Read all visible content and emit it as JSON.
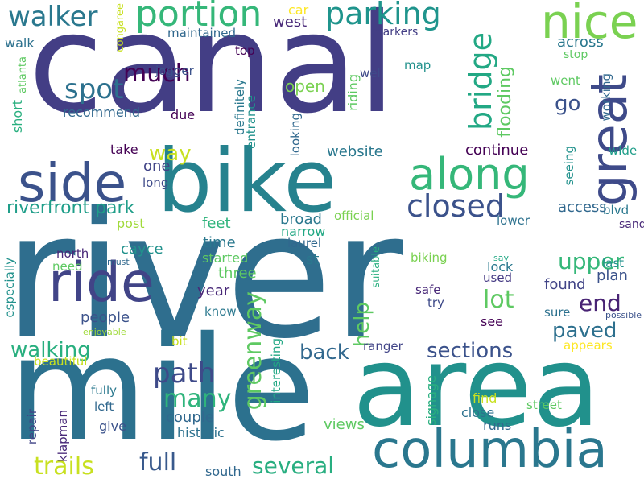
{
  "words": [
    {
      "id": "river",
      "text": "river",
      "color": "#2f6e8e"
    },
    {
      "id": "canal",
      "text": "canal",
      "color": "#433e85"
    },
    {
      "id": "mile",
      "text": "mile",
      "color": "#2c718e"
    },
    {
      "id": "bike",
      "text": "bike",
      "color": "#26828e"
    },
    {
      "id": "area",
      "text": "area",
      "color": "#21918c"
    },
    {
      "id": "columbia",
      "text": "columbia",
      "color": "#2a778e"
    },
    {
      "id": "side",
      "text": "side",
      "color": "#3b528b"
    },
    {
      "id": "along",
      "text": "along",
      "color": "#35b779"
    },
    {
      "id": "ride",
      "text": "ride",
      "color": "#414487"
    },
    {
      "id": "nice",
      "text": "nice",
      "color": "#7ad151"
    },
    {
      "id": "great",
      "text": "great",
      "color": "#3e4a89"
    },
    {
      "id": "portion",
      "text": "portion",
      "color": "#35b779"
    },
    {
      "id": "parking",
      "text": "parking",
      "color": "#1f948c"
    },
    {
      "id": "walker",
      "text": "walker",
      "color": "#2a788e"
    },
    {
      "id": "closed",
      "text": "closed",
      "color": "#3b528b"
    },
    {
      "id": "spot",
      "text": "spot",
      "color": "#2c718e"
    },
    {
      "id": "much",
      "text": "much",
      "color": "#440154"
    },
    {
      "id": "bridge",
      "text": "bridge",
      "color": "#22a884"
    },
    {
      "id": "path",
      "text": "path",
      "color": "#3e4a89"
    },
    {
      "id": "many",
      "text": "many",
      "color": "#2fb47c"
    },
    {
      "id": "greenway",
      "text": "greenway",
      "color": "#5ec962"
    },
    {
      "id": "trails",
      "text": "trails",
      "color": "#c8e020"
    },
    {
      "id": "full",
      "text": "full",
      "color": "#38598c"
    },
    {
      "id": "several",
      "text": "several",
      "color": "#28ae80"
    },
    {
      "id": "riverfront_park",
      "text": "riverfront park",
      "color": "#1f9e89"
    },
    {
      "id": "walking",
      "text": "walking",
      "color": "#29af7f"
    },
    {
      "id": "back",
      "text": "back",
      "color": "#31688e"
    },
    {
      "id": "sections",
      "text": "sections",
      "color": "#3b528b"
    },
    {
      "id": "paved",
      "text": "paved",
      "color": "#2d708e"
    },
    {
      "id": "upper",
      "text": "upper",
      "color": "#35b779"
    },
    {
      "id": "lot",
      "text": "lot",
      "color": "#5ec962"
    },
    {
      "id": "end",
      "text": "end",
      "color": "#482374"
    },
    {
      "id": "help",
      "text": "help",
      "color": "#5ec962"
    },
    {
      "id": "way",
      "text": "way",
      "color": "#c8e020"
    },
    {
      "id": "go",
      "text": "go",
      "color": "#3b528b"
    },
    {
      "id": "flooding",
      "text": "flooding",
      "color": "#5ec962"
    },
    {
      "id": "across",
      "text": "across",
      "color": "#2a788e"
    },
    {
      "id": "stop",
      "text": "stop",
      "color": "#5ec962"
    },
    {
      "id": "working",
      "text": "working",
      "color": "#31688e"
    },
    {
      "id": "went",
      "text": "went",
      "color": "#5ec962"
    },
    {
      "id": "wide",
      "text": "wide",
      "color": "#1f9e89"
    },
    {
      "id": "seeing",
      "text": "seeing",
      "color": "#21918c"
    },
    {
      "id": "blvd",
      "text": "blvd",
      "color": "#2a788e"
    },
    {
      "id": "access",
      "text": "access",
      "color": "#31688e"
    },
    {
      "id": "lower",
      "text": "lower",
      "color": "#2c718e"
    },
    {
      "id": "sand",
      "text": "sand",
      "color": "#482878"
    },
    {
      "id": "last",
      "text": "last",
      "color": "#21918c"
    },
    {
      "id": "plan",
      "text": "plan",
      "color": "#3b528b"
    },
    {
      "id": "found",
      "text": "found",
      "color": "#414487"
    },
    {
      "id": "sure",
      "text": "sure",
      "color": "#2c718e"
    },
    {
      "id": "possible",
      "text": "possible",
      "color": "#3b528b"
    },
    {
      "id": "appears",
      "text": "appears",
      "color": "#fde725"
    },
    {
      "id": "ranger",
      "text": "ranger",
      "color": "#414487"
    },
    {
      "id": "see",
      "text": "see",
      "color": "#440154"
    },
    {
      "id": "lock",
      "text": "lock",
      "color": "#2a788e"
    },
    {
      "id": "say",
      "text": "say",
      "color": "#22a884"
    },
    {
      "id": "used",
      "text": "used",
      "color": "#443983"
    },
    {
      "id": "safe",
      "text": "safe",
      "color": "#482878"
    },
    {
      "id": "try",
      "text": "try",
      "color": "#3e4a89"
    },
    {
      "id": "biking",
      "text": "biking",
      "color": "#7ad151"
    },
    {
      "id": "suitable",
      "text": "suitable",
      "color": "#29af7f"
    },
    {
      "id": "official",
      "text": "official",
      "color": "#7ad151"
    },
    {
      "id": "broad",
      "text": "broad",
      "color": "#2a788e"
    },
    {
      "id": "narrow",
      "text": "narrow",
      "color": "#22a884"
    },
    {
      "id": "laurel",
      "text": "laurel",
      "color": "#31688e"
    },
    {
      "id": "st",
      "text": "st",
      "color": "#2a788e"
    },
    {
      "id": "continue",
      "text": "continue",
      "color": "#440154"
    },
    {
      "id": "website",
      "text": "website",
      "color": "#2a788e"
    },
    {
      "id": "looking",
      "text": "looking",
      "color": "#31688e"
    },
    {
      "id": "open",
      "text": "open",
      "color": "#7ad151"
    },
    {
      "id": "riding",
      "text": "riding",
      "color": "#5ec962"
    },
    {
      "id": "well",
      "text": "well",
      "color": "#3e4a89"
    },
    {
      "id": "map",
      "text": "map",
      "color": "#21918c"
    },
    {
      "id": "markers",
      "text": "markers",
      "color": "#433e85"
    },
    {
      "id": "west",
      "text": "west",
      "color": "#482878"
    },
    {
      "id": "car",
      "text": "car",
      "color": "#fde725"
    },
    {
      "id": "congaree",
      "text": "congaree",
      "color": "#c8e020"
    },
    {
      "id": "maintained",
      "text": "maintained",
      "color": "#31688e"
    },
    {
      "id": "top",
      "text": "top",
      "color": "#440154"
    },
    {
      "id": "jogger",
      "text": "jogger",
      "color": "#3b528b"
    },
    {
      "id": "definitely",
      "text": "definitely",
      "color": "#2a788e"
    },
    {
      "id": "entrance",
      "text": "entrance",
      "color": "#21918c"
    },
    {
      "id": "walk",
      "text": "walk",
      "color": "#2c718e"
    },
    {
      "id": "atlanta",
      "text": "atlanta",
      "color": "#5ec962"
    },
    {
      "id": "short",
      "text": "short",
      "color": "#29af7f"
    },
    {
      "id": "recommend",
      "text": "recommend",
      "color": "#31688e"
    },
    {
      "id": "due",
      "text": "due",
      "color": "#440154"
    },
    {
      "id": "take",
      "text": "take",
      "color": "#440154"
    },
    {
      "id": "one",
      "text": "one",
      "color": "#414487"
    },
    {
      "id": "long",
      "text": "long",
      "color": "#3e4a89"
    },
    {
      "id": "post",
      "text": "post",
      "color": "#a0da39"
    },
    {
      "id": "feet",
      "text": "feet",
      "color": "#2fb47c"
    },
    {
      "id": "cayce",
      "text": "cayce",
      "color": "#21918c"
    },
    {
      "id": "time",
      "text": "time",
      "color": "#2a788e"
    },
    {
      "id": "started",
      "text": "started",
      "color": "#5ec962"
    },
    {
      "id": "three",
      "text": "three",
      "color": "#5ec962"
    },
    {
      "id": "year",
      "text": "year",
      "color": "#482878"
    },
    {
      "id": "north",
      "text": "north",
      "color": "#482878"
    },
    {
      "id": "need",
      "text": "need",
      "color": "#5ec962"
    },
    {
      "id": "must",
      "text": "must",
      "color": "#31688e"
    },
    {
      "id": "especially",
      "text": "especially",
      "color": "#21918c"
    },
    {
      "id": "people",
      "text": "people",
      "color": "#3b528b"
    },
    {
      "id": "know",
      "text": "know",
      "color": "#2a788e"
    },
    {
      "id": "enjoyable",
      "text": "enjoyable",
      "color": "#a0da39"
    },
    {
      "id": "bit",
      "text": "bit",
      "color": "#c8e020"
    },
    {
      "id": "beautiful",
      "text": "beautiful",
      "color": "#c8e020"
    },
    {
      "id": "interesting",
      "text": "interesting",
      "color": "#22a884"
    },
    {
      "id": "fully",
      "text": "fully",
      "color": "#2a788e"
    },
    {
      "id": "left",
      "text": "left",
      "color": "#31688e"
    },
    {
      "id": "give",
      "text": "give",
      "color": "#3b528b"
    },
    {
      "id": "couple",
      "text": "couple",
      "color": "#31688e"
    },
    {
      "id": "historic",
      "text": "historic",
      "color": "#2c718e"
    },
    {
      "id": "klapman",
      "text": "klapman",
      "color": "#482878"
    },
    {
      "id": "repair",
      "text": "repair",
      "color": "#414487"
    },
    {
      "id": "signage",
      "text": "signage",
      "color": "#29af7f"
    },
    {
      "id": "views",
      "text": "views",
      "color": "#5ec962"
    },
    {
      "id": "find",
      "text": "find",
      "color": "#c8e020"
    },
    {
      "id": "close",
      "text": "close",
      "color": "#2c718e"
    },
    {
      "id": "runs",
      "text": "runs",
      "color": "#31688e"
    },
    {
      "id": "street",
      "text": "street",
      "color": "#5ec962"
    },
    {
      "id": "south",
      "text": "south",
      "color": "#31688e"
    }
  ]
}
